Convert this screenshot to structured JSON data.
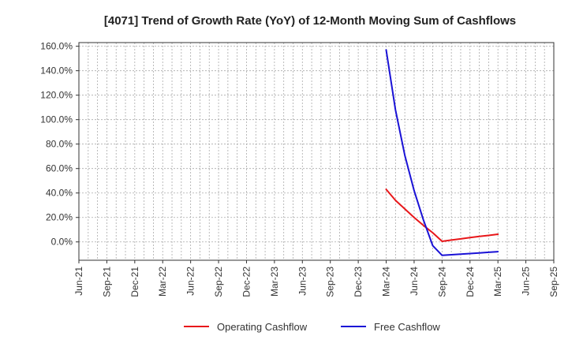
{
  "chart_data": {
    "type": "line",
    "title": "[4071]  Trend of Growth Rate (YoY) of 12-Month Moving Sum of Cashflows",
    "xlabel": "",
    "ylabel": "",
    "x_ticks": [
      "Jun-21",
      "Sep-21",
      "Dec-21",
      "Mar-22",
      "Jun-22",
      "Sep-22",
      "Dec-22",
      "Mar-23",
      "Jun-23",
      "Sep-23",
      "Dec-23",
      "Mar-24",
      "Jun-24",
      "Sep-24",
      "Dec-24",
      "Mar-25",
      "Jun-25",
      "Sep-25"
    ],
    "y_ticks": [
      "0.0%",
      "20.0%",
      "40.0%",
      "60.0%",
      "80.0%",
      "100.0%",
      "120.0%",
      "140.0%",
      "160.0%"
    ],
    "ylim": [
      -15,
      163
    ],
    "y_unit": "%",
    "grid": true,
    "legend_position": "bottom",
    "series": [
      {
        "name": "Operating Cashflow",
        "color": "#e8171a",
        "points": [
          {
            "x": "Mar-24",
            "y": 43
          },
          {
            "x": "Apr-24",
            "y": 34
          },
          {
            "x": "May-24",
            "y": 27
          },
          {
            "x": "Jun-24",
            "y": 20
          },
          {
            "x": "Jul-24",
            "y": 13.5
          },
          {
            "x": "Aug-24",
            "y": 7.5
          },
          {
            "x": "Sep-24",
            "y": 0.5
          },
          {
            "x": "Oct-24",
            "y": 1.5
          },
          {
            "x": "Nov-24",
            "y": 2.5
          },
          {
            "x": "Dec-24",
            "y": 3.5
          },
          {
            "x": "Jan-25",
            "y": 4.5
          },
          {
            "x": "Feb-25",
            "y": 5.3
          },
          {
            "x": "Mar-25",
            "y": 6.3
          }
        ]
      },
      {
        "name": "Free Cashflow",
        "color": "#1a12d6",
        "points": [
          {
            "x": "Mar-24",
            "y": 157
          },
          {
            "x": "Apr-24",
            "y": 108
          },
          {
            "x": "May-24",
            "y": 71
          },
          {
            "x": "Jun-24",
            "y": 42
          },
          {
            "x": "Jul-24",
            "y": 18
          },
          {
            "x": "Aug-24",
            "y": -3
          },
          {
            "x": "Sep-24",
            "y": -11
          },
          {
            "x": "Oct-24",
            "y": -10.5
          },
          {
            "x": "Nov-24",
            "y": -10
          },
          {
            "x": "Dec-24",
            "y": -9.5
          },
          {
            "x": "Jan-25",
            "y": -9
          },
          {
            "x": "Feb-25",
            "y": -8.5
          },
          {
            "x": "Mar-25",
            "y": -8
          }
        ]
      }
    ]
  }
}
